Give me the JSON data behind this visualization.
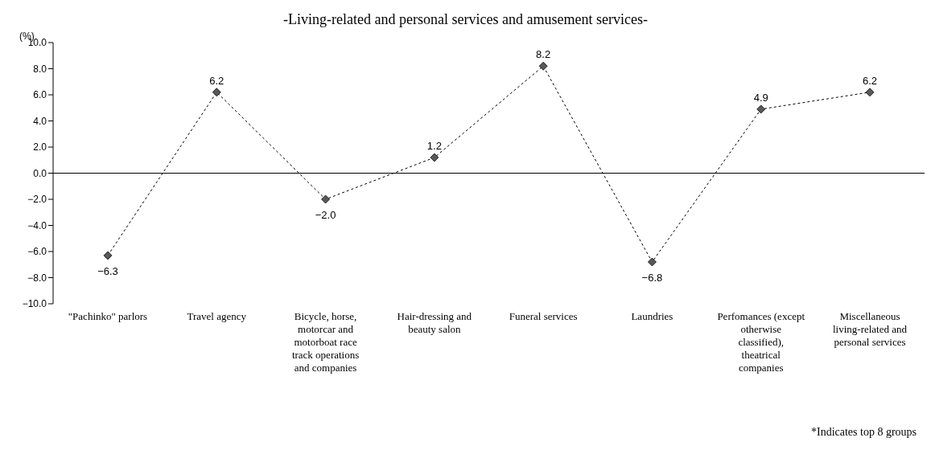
{
  "chart_data": {
    "type": "line",
    "title": "-Living-related and personal services and amusement services-",
    "ylabel": "(%)",
    "categories": [
      "\"Pachinko\" parlors",
      "Travel agency",
      "Bicycle, horse, motorcar and motorboat race track operations and companies",
      "Hair-dressing and beauty salon",
      "Funeral services",
      "Laundries",
      "Perfomances (except otherwise classified), theatrical companies",
      "Miscellaneous living-related and personal services"
    ],
    "series": [
      {
        "color": "#595959",
        "values": [
          -6.3,
          6.2,
          -2.0,
          1.2,
          8.2,
          -6.8,
          4.9,
          6.2
        ],
        "value_labels": [
          "−6.3",
          "6.2",
          "−2.0",
          "1.2",
          "8.2",
          "−6.8",
          "4.9",
          "6.2"
        ]
      }
    ],
    "ylim": [
      -10,
      10
    ],
    "yticks": [
      {
        "value": -10,
        "label": "−10.0"
      },
      {
        "value": -8,
        "label": "−8.0"
      },
      {
        "value": -6,
        "label": "−6.0"
      },
      {
        "value": -4,
        "label": "−4.0"
      },
      {
        "value": -2,
        "label": "−2.0"
      },
      {
        "value": 0,
        "label": "0.0"
      },
      {
        "value": 2,
        "label": "2.0"
      },
      {
        "value": 4,
        "label": "4.0"
      },
      {
        "value": 6,
        "label": "6.0"
      },
      {
        "value": 8,
        "label": "8.0"
      },
      {
        "value": 10,
        "label": "10.0"
      }
    ],
    "ref_lines": [
      {
        "axis": "y",
        "value": 0,
        "color": "#000000"
      }
    ],
    "grid": false,
    "legend": false,
    "marker": "diamond",
    "line_style": "dashed",
    "annotations": [
      "*Indicates top 8 groups"
    ]
  }
}
